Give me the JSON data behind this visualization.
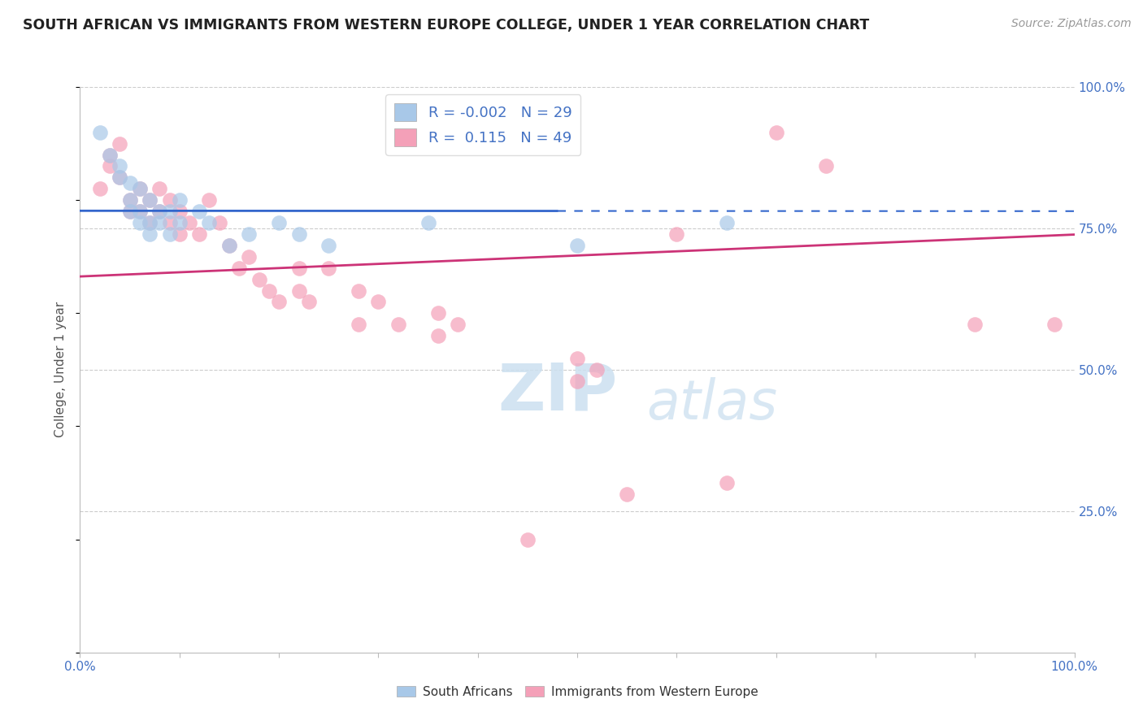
{
  "title": "SOUTH AFRICAN VS IMMIGRANTS FROM WESTERN EUROPE COLLEGE, UNDER 1 YEAR CORRELATION CHART",
  "source": "Source: ZipAtlas.com",
  "ylabel": "College, Under 1 year",
  "blue_color": "#a8c8e8",
  "pink_color": "#f4a0b8",
  "blue_line_color": "#3366cc",
  "pink_line_color": "#cc3377",
  "blue_R": -0.002,
  "blue_N": 29,
  "pink_R": 0.115,
  "pink_N": 49,
  "watermark_zip": "ZIP",
  "watermark_atlas": "atlas",
  "blue_points": [
    [
      0.02,
      0.92
    ],
    [
      0.03,
      0.88
    ],
    [
      0.04,
      0.86
    ],
    [
      0.04,
      0.84
    ],
    [
      0.05,
      0.83
    ],
    [
      0.05,
      0.8
    ],
    [
      0.05,
      0.78
    ],
    [
      0.06,
      0.82
    ],
    [
      0.06,
      0.78
    ],
    [
      0.06,
      0.76
    ],
    [
      0.07,
      0.8
    ],
    [
      0.07,
      0.76
    ],
    [
      0.07,
      0.74
    ],
    [
      0.08,
      0.78
    ],
    [
      0.08,
      0.76
    ],
    [
      0.09,
      0.78
    ],
    [
      0.09,
      0.74
    ],
    [
      0.1,
      0.8
    ],
    [
      0.1,
      0.76
    ],
    [
      0.12,
      0.78
    ],
    [
      0.13,
      0.76
    ],
    [
      0.15,
      0.72
    ],
    [
      0.17,
      0.74
    ],
    [
      0.2,
      0.76
    ],
    [
      0.22,
      0.74
    ],
    [
      0.25,
      0.72
    ],
    [
      0.35,
      0.76
    ],
    [
      0.5,
      0.72
    ],
    [
      0.65,
      0.76
    ]
  ],
  "pink_points": [
    [
      0.02,
      0.82
    ],
    [
      0.03,
      0.88
    ],
    [
      0.03,
      0.86
    ],
    [
      0.04,
      0.9
    ],
    [
      0.04,
      0.84
    ],
    [
      0.05,
      0.8
    ],
    [
      0.05,
      0.78
    ],
    [
      0.06,
      0.82
    ],
    [
      0.06,
      0.78
    ],
    [
      0.07,
      0.8
    ],
    [
      0.07,
      0.76
    ],
    [
      0.08,
      0.82
    ],
    [
      0.08,
      0.78
    ],
    [
      0.09,
      0.8
    ],
    [
      0.09,
      0.76
    ],
    [
      0.1,
      0.78
    ],
    [
      0.1,
      0.74
    ],
    [
      0.11,
      0.76
    ],
    [
      0.12,
      0.74
    ],
    [
      0.13,
      0.8
    ],
    [
      0.14,
      0.76
    ],
    [
      0.15,
      0.72
    ],
    [
      0.16,
      0.68
    ],
    [
      0.17,
      0.7
    ],
    [
      0.18,
      0.66
    ],
    [
      0.19,
      0.64
    ],
    [
      0.2,
      0.62
    ],
    [
      0.22,
      0.68
    ],
    [
      0.22,
      0.64
    ],
    [
      0.23,
      0.62
    ],
    [
      0.25,
      0.68
    ],
    [
      0.28,
      0.64
    ],
    [
      0.28,
      0.58
    ],
    [
      0.3,
      0.62
    ],
    [
      0.32,
      0.58
    ],
    [
      0.36,
      0.6
    ],
    [
      0.36,
      0.56
    ],
    [
      0.38,
      0.58
    ],
    [
      0.45,
      0.2
    ],
    [
      0.5,
      0.52
    ],
    [
      0.5,
      0.48
    ],
    [
      0.52,
      0.5
    ],
    [
      0.55,
      0.28
    ],
    [
      0.6,
      0.74
    ],
    [
      0.65,
      0.3
    ],
    [
      0.7,
      0.92
    ],
    [
      0.75,
      0.86
    ],
    [
      0.9,
      0.58
    ],
    [
      0.98,
      0.58
    ]
  ]
}
